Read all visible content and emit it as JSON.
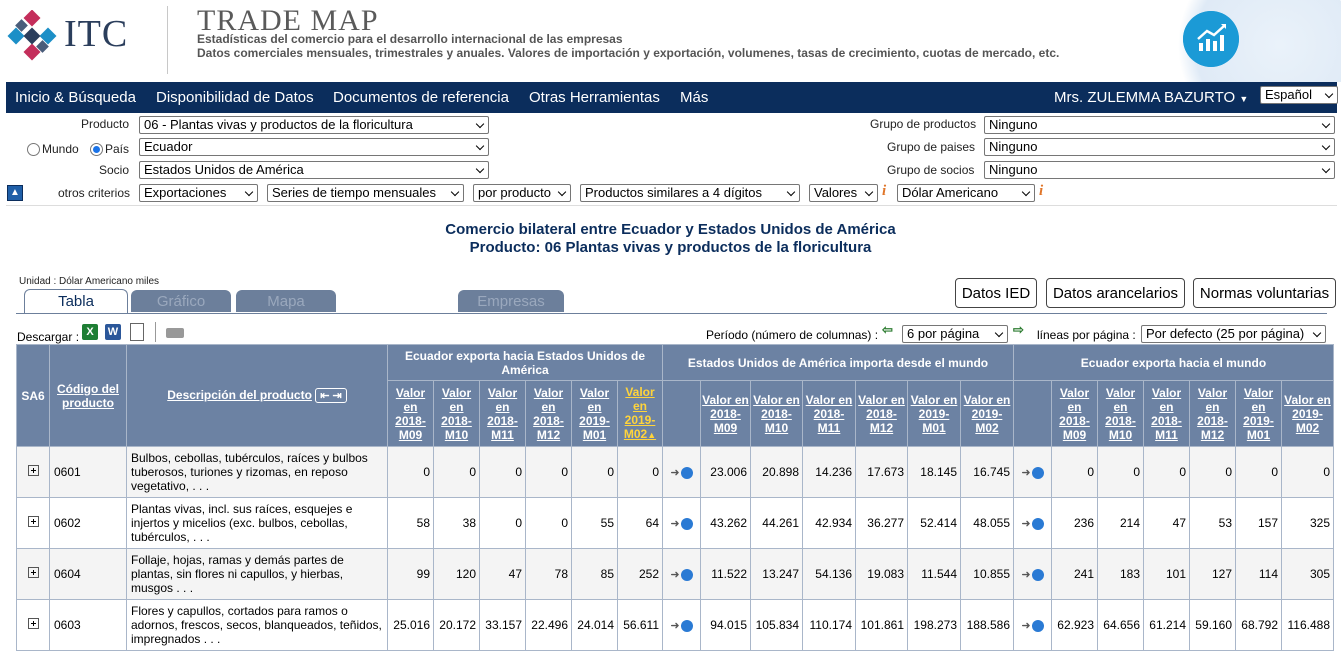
{
  "header": {
    "itc_logo_text": "ITC",
    "title": "TRADE MAP",
    "subtitle1": "Estadísticas del comercio para el desarrollo internacional de las empresas",
    "subtitle2": "Datos comerciales mensuales, trimestrales y anuales. Valores de importación y exportación, volumenes, tasas de crecimiento, cuotas de mercado, etc."
  },
  "nav": {
    "items": [
      "Inicio & Búsqueda",
      "Disponibilidad de Datos",
      "Documentos de referencia",
      "Otras Herramientas",
      "Más"
    ],
    "user": "Mrs. ZULEMMA BAZURTO",
    "language": "Español"
  },
  "filters": {
    "producto_label": "Producto",
    "producto_value": "06 - Plantas vivas y productos de la floricultura",
    "mundo_label": "Mundo",
    "pais_label": "País",
    "pais_value": "Ecuador",
    "socio_label": "Socio",
    "socio_value": "Estados Unidos de América",
    "otros_label": "otros criterios",
    "otros": [
      "Exportaciones",
      "Series de tiempo mensuales",
      "por producto",
      "Productos similares a 4 dígitos",
      "Valores",
      "Dólar Americano"
    ],
    "grupo_productos_label": "Grupo de productos",
    "grupo_productos_value": "Ninguno",
    "grupo_paises_label": "Grupo de paises",
    "grupo_paises_value": "Ninguno",
    "grupo_socios_label": "Grupo de socios",
    "grupo_socios_value": "Ninguno"
  },
  "report": {
    "title1": "Comercio bilateral entre Ecuador y Estados Unidos de América",
    "title2": "Producto: 06 Plantas vivas y productos de la floricultura",
    "unit": "Unidad : Dólar Americano miles"
  },
  "tabs": [
    "Tabla",
    "Gráfico",
    "Mapa",
    "Empresas"
  ],
  "buttons": [
    "Datos IED",
    "Datos arancelarios",
    "Normas voluntarias"
  ],
  "toolbar": {
    "descargar": "Descargar :",
    "periodo_label": "Período (número de columnas) :",
    "periodo_value": "6 por página",
    "lineas_label": "líneas por página :",
    "lineas_value": "Por defecto (25 por página)"
  },
  "table": {
    "sa6": "SA6",
    "codigo": "Código del producto",
    "descripcion": "Descripción del producto",
    "group1": "Ecuador exporta hacia Estados Unidos de América",
    "group2": "Estados Unidos de América importa desde el mundo",
    "group3": "Ecuador exporta hacia el mundo",
    "periods": [
      "Valor en 2018-M09",
      "Valor en 2018-M10",
      "Valor en 2018-M11",
      "Valor en 2018-M12",
      "Valor en 2019-M01",
      "Valor en 2019-M02"
    ],
    "rows": [
      {
        "code": "0601",
        "desc": "Bulbos, cebollas, tubérculos, raíces y bulbos tuberosos, turiones y rizomas, en reposo vegetativo, . . .",
        "g1": [
          "0",
          "0",
          "0",
          "0",
          "0",
          "0"
        ],
        "g2": [
          "23.006",
          "20.898",
          "14.236",
          "17.673",
          "18.145",
          "16.745"
        ],
        "g3": [
          "0",
          "0",
          "0",
          "0",
          "0",
          "0"
        ]
      },
      {
        "code": "0602",
        "desc": "Plantas vivas, incl. sus raíces, esquejes e injertos y micelios (exc. bulbos, cebollas, tubérculos, . . .",
        "g1": [
          "58",
          "38",
          "0",
          "0",
          "55",
          "64"
        ],
        "g2": [
          "43.262",
          "44.261",
          "42.934",
          "36.277",
          "52.414",
          "48.055"
        ],
        "g3": [
          "236",
          "214",
          "47",
          "53",
          "157",
          "325"
        ]
      },
      {
        "code": "0604",
        "desc": "Follaje, hojas, ramas y demás partes de plantas, sin flores ni capullos, y hierbas, musgos . . .",
        "g1": [
          "99",
          "120",
          "47",
          "78",
          "85",
          "252"
        ],
        "g2": [
          "11.522",
          "13.247",
          "54.136",
          "19.083",
          "11.544",
          "10.855"
        ],
        "g3": [
          "241",
          "183",
          "101",
          "127",
          "114",
          "305"
        ]
      },
      {
        "code": "0603",
        "desc": "Flores y capullos, cortados para ramos o adornos, frescos, secos, blanqueados, teñidos, impregnados . . .",
        "g1": [
          "25.016",
          "20.172",
          "33.157",
          "22.496",
          "24.014",
          "56.611"
        ],
        "g2": [
          "94.015",
          "105.834",
          "110.174",
          "101.861",
          "198.273",
          "188.586"
        ],
        "g3": [
          "62.923",
          "64.656",
          "61.214",
          "59.160",
          "68.792",
          "116.488"
        ]
      }
    ]
  }
}
